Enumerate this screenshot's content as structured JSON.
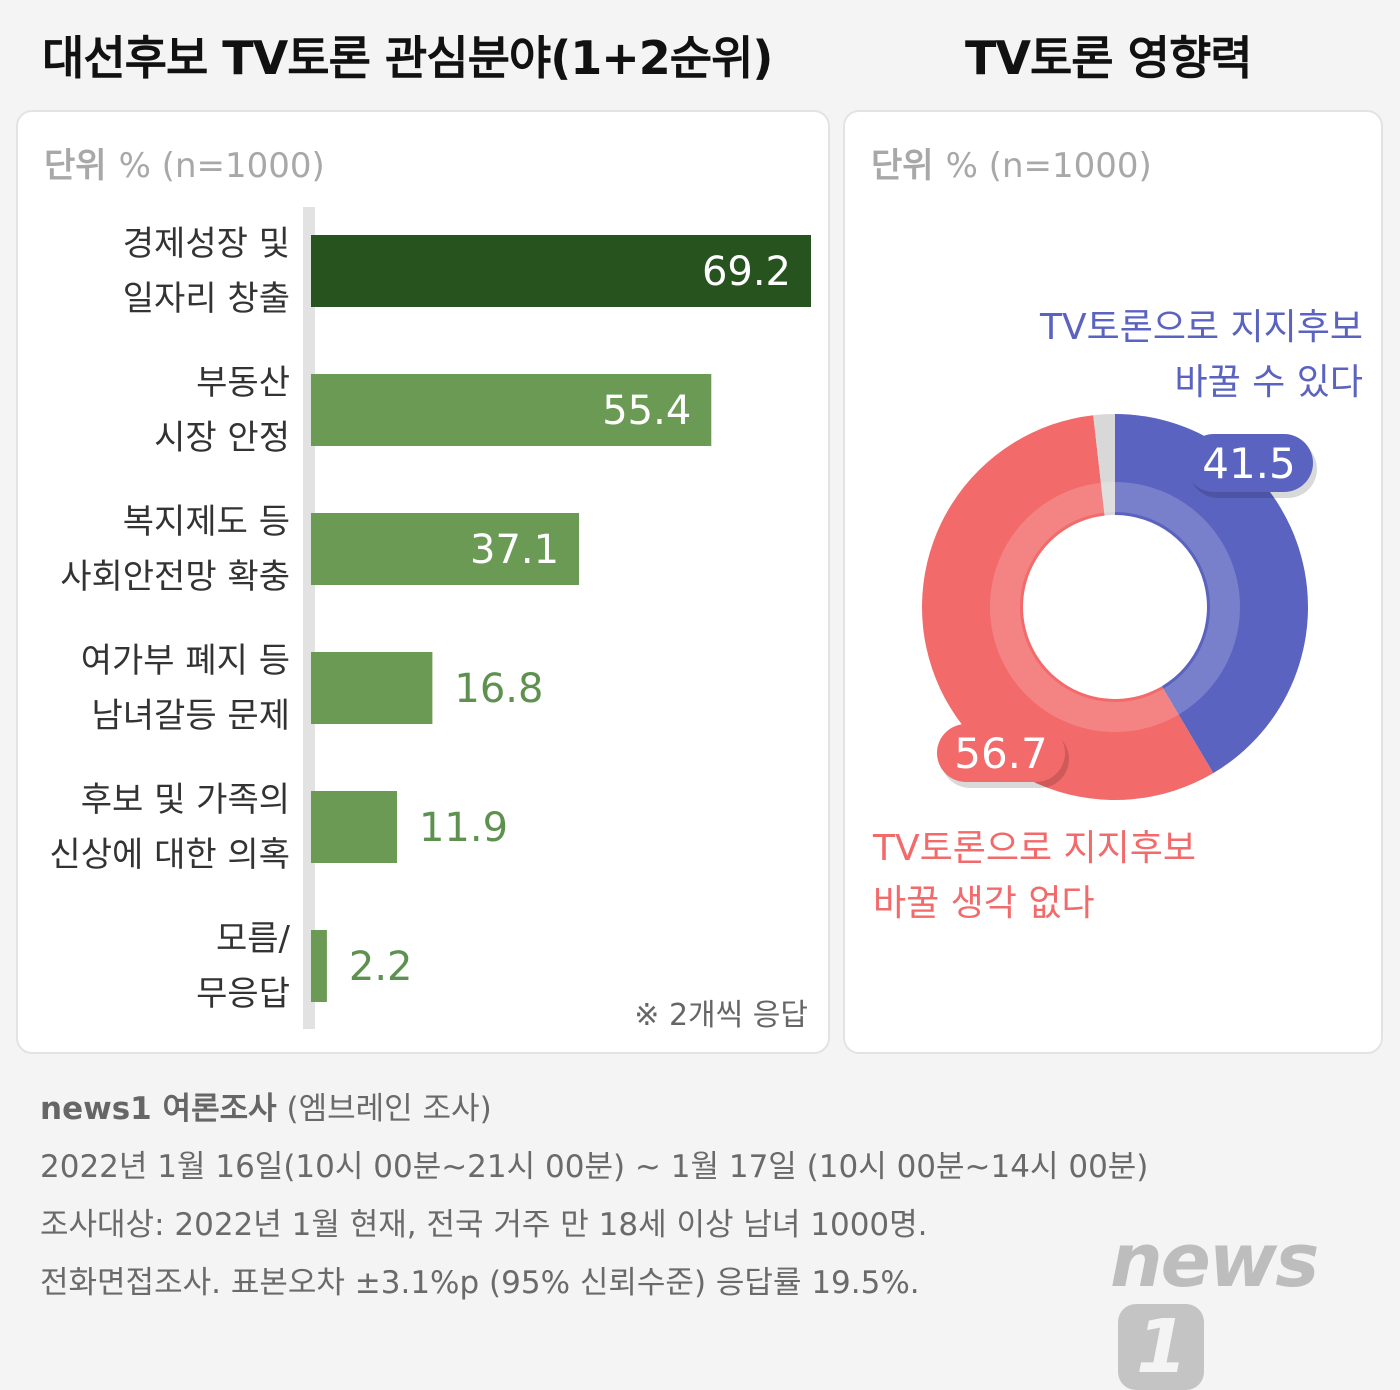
{
  "titles": {
    "left": "대선후보 TV토론 관심분야(1+2순위)",
    "right": "TV토론 영향력"
  },
  "unit": {
    "label": "단위",
    "text": "% (n=1000)"
  },
  "note": "※ 2개씩 응답",
  "colors": {
    "bar_dark": "#27531f",
    "bar": "#6a9a54",
    "outside_label": "#5e9150",
    "inside_label": "#ffffff",
    "axis_line": "#e2e2e2",
    "donut_blue": "#5b63c0",
    "donut_red": "#f26a6a",
    "donut_gray": "#d8d8d8",
    "text_blue": "#5b63c0",
    "text_red": "#f26a6a"
  },
  "chart_data": [
    {
      "type": "bar",
      "orientation": "horizontal",
      "categories": [
        [
          "경제성장 및",
          "일자리 창출"
        ],
        [
          "부동산",
          "시장 안정"
        ],
        [
          "복지제도 등",
          "사회안전망 확충"
        ],
        [
          "여가부 폐지 등",
          "남녀갈등 문제"
        ],
        [
          "후보 및  가족의",
          "신상에 대한 의혹"
        ],
        [
          "모름/",
          "무응답"
        ]
      ],
      "values": [
        69.2,
        55.4,
        37.1,
        16.8,
        11.9,
        2.2
      ],
      "value_labels": [
        "69.2",
        "55.4",
        "37.1",
        "16.8",
        "11.9",
        "2.2"
      ],
      "xlim": [
        0,
        69.2
      ]
    },
    {
      "type": "pie",
      "variant": "donut",
      "slices": [
        {
          "label": [
            "TV토론으로 지지후보",
            "바꿀 수 있다"
          ],
          "value": 41.5,
          "value_label": "41.5",
          "color": "#5b63c0"
        },
        {
          "label": [
            "TV토론으로 지지후보",
            "바꿀 생각 없다"
          ],
          "value": 56.7,
          "value_label": "56.7",
          "color": "#f26a6a"
        },
        {
          "label": [],
          "value": 1.8,
          "value_label": "",
          "color": "#d8d8d8"
        }
      ]
    }
  ],
  "footer": {
    "brand": "news1 여론조사",
    "source": "(엠브레인 조사)",
    "lines": [
      "2022년 1월 16일(10시 00분~21시 00분) ~ 1월 17일 (10시 00분~14시 00분)",
      "조사대상: 2022년 1월 현재, 전국 거주 만 18세 이상 남녀 1000명.",
      "전화면접조사. 표본오차 ±3.1%p (95% 신뢰수준) 응답률 19.5%."
    ]
  },
  "logo": {
    "text": "news",
    "mark": "1"
  }
}
